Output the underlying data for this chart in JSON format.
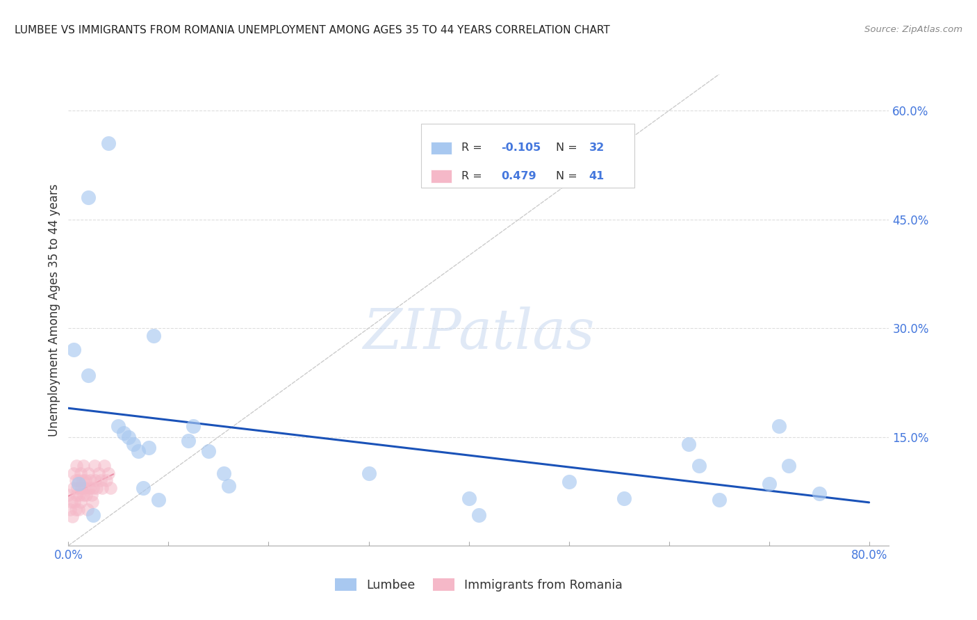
{
  "title": "LUMBEE VS IMMIGRANTS FROM ROMANIA UNEMPLOYMENT AMONG AGES 35 TO 44 YEARS CORRELATION CHART",
  "source": "Source: ZipAtlas.com",
  "ylabel": "Unemployment Among Ages 35 to 44 years",
  "legend_labels": [
    "Lumbee",
    "Immigrants from Romania"
  ],
  "lumbee_R": "-0.105",
  "lumbee_N": "32",
  "romania_R": "0.479",
  "romania_N": "41",
  "lumbee_color": "#a8c8f0",
  "romania_color": "#f5b8c8",
  "lumbee_trend_color": "#1a52b8",
  "romania_trend_color": "#e06080",
  "diagonal_color": "#cccccc",
  "background_color": "#ffffff",
  "xlim": [
    0.0,
    0.82
  ],
  "ylim": [
    0.0,
    0.65
  ],
  "lumbee_x": [
    0.005,
    0.02,
    0.04,
    0.02,
    0.05,
    0.055,
    0.06,
    0.065,
    0.07,
    0.075,
    0.08,
    0.09,
    0.12,
    0.125,
    0.14,
    0.155,
    0.16,
    0.3,
    0.4,
    0.41,
    0.5,
    0.555,
    0.62,
    0.63,
    0.65,
    0.7,
    0.71,
    0.72,
    0.75,
    0.01,
    0.025,
    0.085
  ],
  "lumbee_y": [
    0.27,
    0.48,
    0.555,
    0.235,
    0.165,
    0.155,
    0.15,
    0.14,
    0.13,
    0.08,
    0.135,
    0.063,
    0.145,
    0.165,
    0.13,
    0.1,
    0.082,
    0.1,
    0.065,
    0.042,
    0.088,
    0.065,
    0.14,
    0.11,
    0.063,
    0.085,
    0.165,
    0.11,
    0.072,
    0.085,
    0.042,
    0.29
  ],
  "romania_x": [
    0.0,
    0.002,
    0.003,
    0.004,
    0.005,
    0.005,
    0.006,
    0.007,
    0.007,
    0.008,
    0.008,
    0.009,
    0.01,
    0.01,
    0.011,
    0.012,
    0.012,
    0.013,
    0.014,
    0.015,
    0.015,
    0.016,
    0.017,
    0.018,
    0.019,
    0.02,
    0.021,
    0.022,
    0.023,
    0.024,
    0.025,
    0.026,
    0.027,
    0.028,
    0.03,
    0.032,
    0.034,
    0.036,
    0.038,
    0.04,
    0.042
  ],
  "romania_y": [
    0.07,
    0.05,
    0.06,
    0.04,
    0.08,
    0.1,
    0.06,
    0.09,
    0.05,
    0.07,
    0.11,
    0.08,
    0.05,
    0.09,
    0.07,
    0.06,
    0.1,
    0.08,
    0.09,
    0.07,
    0.11,
    0.08,
    0.09,
    0.07,
    0.05,
    0.1,
    0.08,
    0.09,
    0.07,
    0.06,
    0.08,
    0.11,
    0.09,
    0.08,
    0.1,
    0.09,
    0.08,
    0.11,
    0.09,
    0.1,
    0.08
  ]
}
